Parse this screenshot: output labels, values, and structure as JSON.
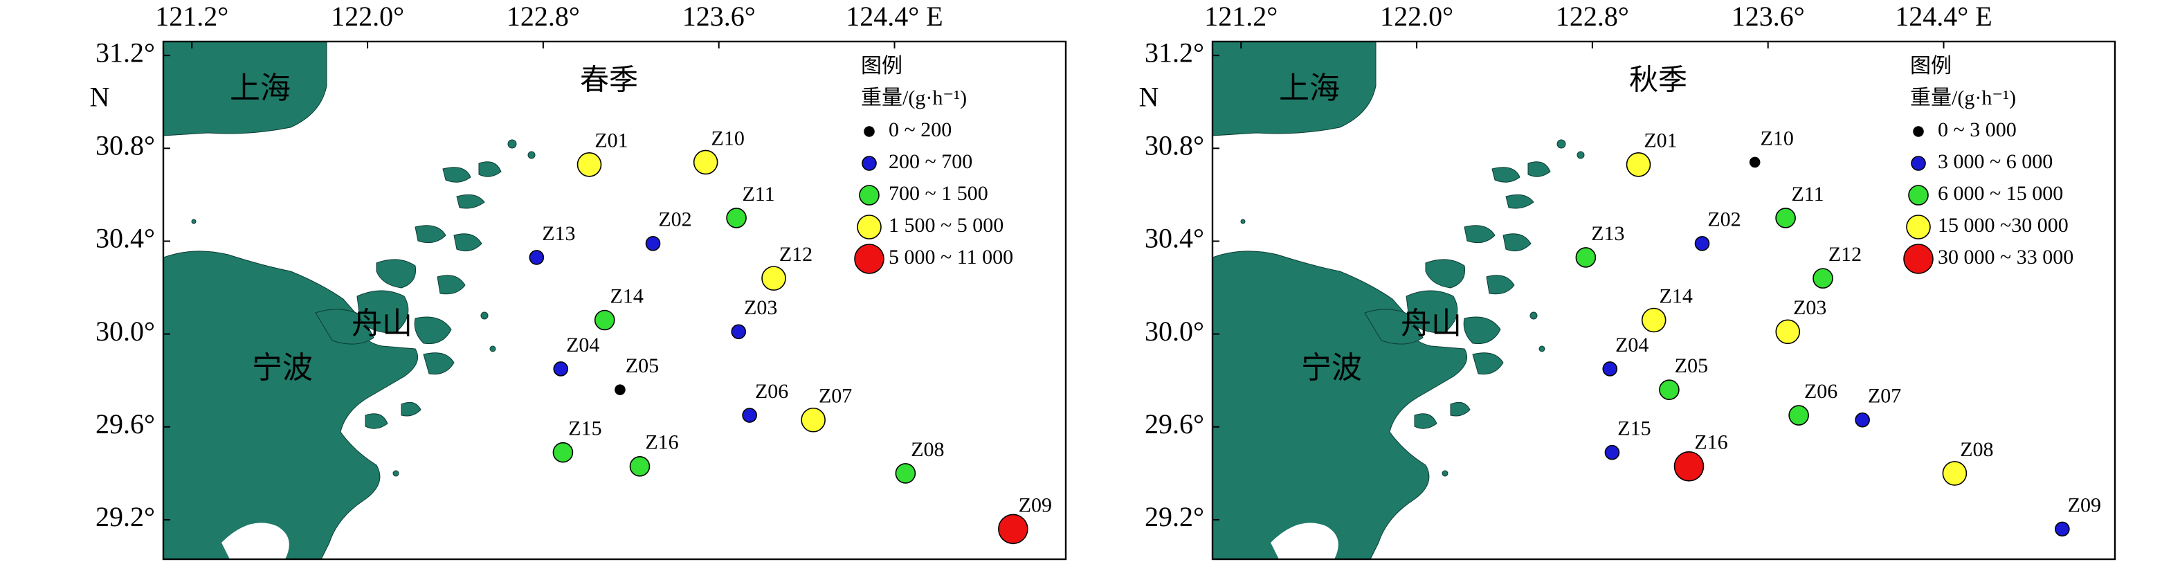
{
  "xticks": [
    {
      "value": 121.2,
      "label": "121.2°"
    },
    {
      "value": 122.0,
      "label": "122.0°"
    },
    {
      "value": 122.8,
      "label": "122.8°"
    },
    {
      "value": 123.6,
      "label": "123.6°"
    },
    {
      "value": 124.4,
      "label": "124.4° E"
    }
  ],
  "yticks": [
    {
      "value": 31.2,
      "label": "31.2°"
    },
    {
      "value": 30.8,
      "label": "30.8°"
    },
    {
      "value": 30.4,
      "label": "30.4°"
    },
    {
      "value": 30.0,
      "label": "30.0°"
    },
    {
      "value": 29.6,
      "label": "29.6°"
    },
    {
      "value": 29.2,
      "label": "29.2°"
    }
  ],
  "xlim": [
    121.07,
    125.18
  ],
  "ylim": [
    29.03,
    31.26
  ],
  "lat_label": "N",
  "places": [
    "上海",
    "宁波",
    "舟山"
  ],
  "stations": [
    {
      "name": "Z01",
      "lon": 123.01,
      "lat": 30.73
    },
    {
      "name": "Z10",
      "lon": 123.54,
      "lat": 30.74
    },
    {
      "name": "Z11",
      "lon": 123.68,
      "lat": 30.5
    },
    {
      "name": "Z02",
      "lon": 123.3,
      "lat": 30.39
    },
    {
      "name": "Z13",
      "lon": 122.77,
      "lat": 30.33
    },
    {
      "name": "Z12",
      "lon": 123.85,
      "lat": 30.24
    },
    {
      "name": "Z14",
      "lon": 123.08,
      "lat": 30.06
    },
    {
      "name": "Z03",
      "lon": 123.69,
      "lat": 30.01
    },
    {
      "name": "Z04",
      "lon": 122.88,
      "lat": 29.85
    },
    {
      "name": "Z05",
      "lon": 123.15,
      "lat": 29.76
    },
    {
      "name": "Z06",
      "lon": 123.74,
      "lat": 29.65
    },
    {
      "name": "Z07",
      "lon": 124.03,
      "lat": 29.63
    },
    {
      "name": "Z15",
      "lon": 122.89,
      "lat": 29.49
    },
    {
      "name": "Z16",
      "lon": 123.24,
      "lat": 29.43
    },
    {
      "name": "Z08",
      "lon": 124.45,
      "lat": 29.4
    },
    {
      "name": "Z09",
      "lon": 124.94,
      "lat": 29.16
    }
  ],
  "panels": [
    {
      "title": "春季",
      "legend": {
        "title": "图例",
        "unit": "重量/(g·h⁻¹)",
        "items": [
          {
            "label": "0 ~ 200",
            "color": "#000000"
          },
          {
            "label": "200 ~ 700",
            "color": "#1a1ad6"
          },
          {
            "label": "700 ~ 1 500",
            "color": "#33e033"
          },
          {
            "label": "1 500 ~ 5 000",
            "color": "#ffff33"
          },
          {
            "label": "5 000 ~ 11 000",
            "color": "#ee1111"
          }
        ]
      },
      "classes": [
        3,
        3,
        2,
        1,
        1,
        3,
        2,
        1,
        1,
        0,
        1,
        3,
        2,
        2,
        2,
        4
      ]
    },
    {
      "title": "秋季",
      "legend": {
        "title": "图例",
        "unit": "重量/(g·h⁻¹)",
        "items": [
          {
            "label": "0 ~ 3 000",
            "color": "#000000"
          },
          {
            "label": "3 000 ~ 6 000",
            "color": "#1a1ad6"
          },
          {
            "label": "6 000 ~ 15 000",
            "color": "#33e033"
          },
          {
            "label": "15 000 ~30 000",
            "color": "#ffff33"
          },
          {
            "label": "30 000 ~ 33 000",
            "color": "#ee1111"
          }
        ]
      },
      "classes": [
        3,
        0,
        2,
        1,
        2,
        2,
        3,
        3,
        1,
        2,
        2,
        1,
        1,
        4,
        3,
        1
      ]
    }
  ]
}
